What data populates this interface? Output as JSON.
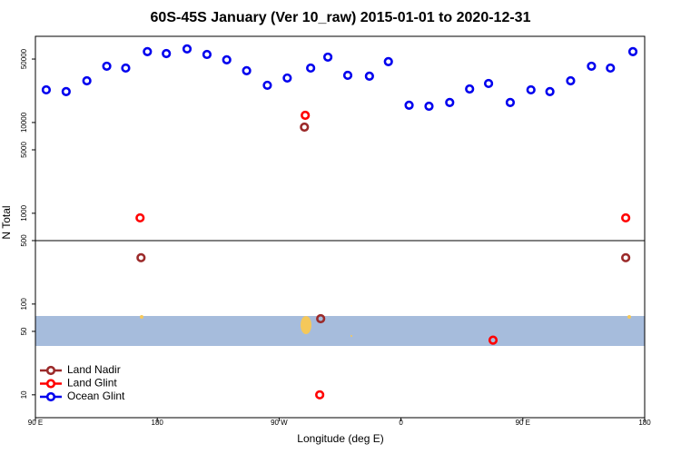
{
  "chart_data": {
    "type": "scatter",
    "title": "60S-45S January (Ver 10_raw)   2015-01-01 to 2020-12-31",
    "x_label": "Longitude (deg E)",
    "y_label": "N Total",
    "xlim": [
      90,
      540
    ],
    "xticks": [
      {
        "value": 90,
        "label": "90 E"
      },
      180,
      {
        "value": 270,
        "label": "90 W"
      },
      {
        "value": 360,
        "label": "0"
      },
      {
        "value": 450,
        "label": "90 E"
      },
      {
        "value": 540,
        "label": "180"
      }
    ],
    "ylim": [
      5.6,
      89000
    ],
    "log_y": true,
    "yticks": [
      10,
      50,
      100,
      500,
      1000,
      5000,
      10000,
      50000
    ],
    "separator": 500,
    "legend": "bottom-left",
    "series": [
      {
        "name": "Land Nadir",
        "color": "#9b2a2a",
        "x": [
          168,
          288.7,
          300.7,
          526
        ],
        "values": [
          324,
          8900,
          69,
          324
        ]
      },
      {
        "name": "Land Glint",
        "color": "#ff0000",
        "x": [
          167.3,
          289.3,
          428,
          300,
          526
        ],
        "values": [
          890,
          12000,
          40,
          10,
          890
        ]
      },
      {
        "name": "Ocean Glint",
        "color": "#0000ee",
        "x": [
          98,
          112.7,
          128,
          142.7,
          156.7,
          172.7,
          186.7,
          202,
          216.7,
          231.3,
          246,
          261.3,
          276,
          293.3,
          306,
          320.7,
          336.7,
          350.7,
          366,
          380.7,
          396,
          410.7,
          424.7,
          440.7,
          456,
          470,
          485.3,
          500.7,
          514.7,
          531.3
        ],
        "values": [
          22900,
          21900,
          28800,
          41700,
          39800,
          60300,
          57500,
          64600,
          56200,
          49000,
          37200,
          25700,
          30900,
          39800,
          52500,
          33100,
          32400,
          46800,
          15500,
          15100,
          16600,
          23400,
          26900,
          16600,
          22900,
          21900,
          28800,
          41700,
          39800,
          60300
        ]
      }
    ]
  }
}
